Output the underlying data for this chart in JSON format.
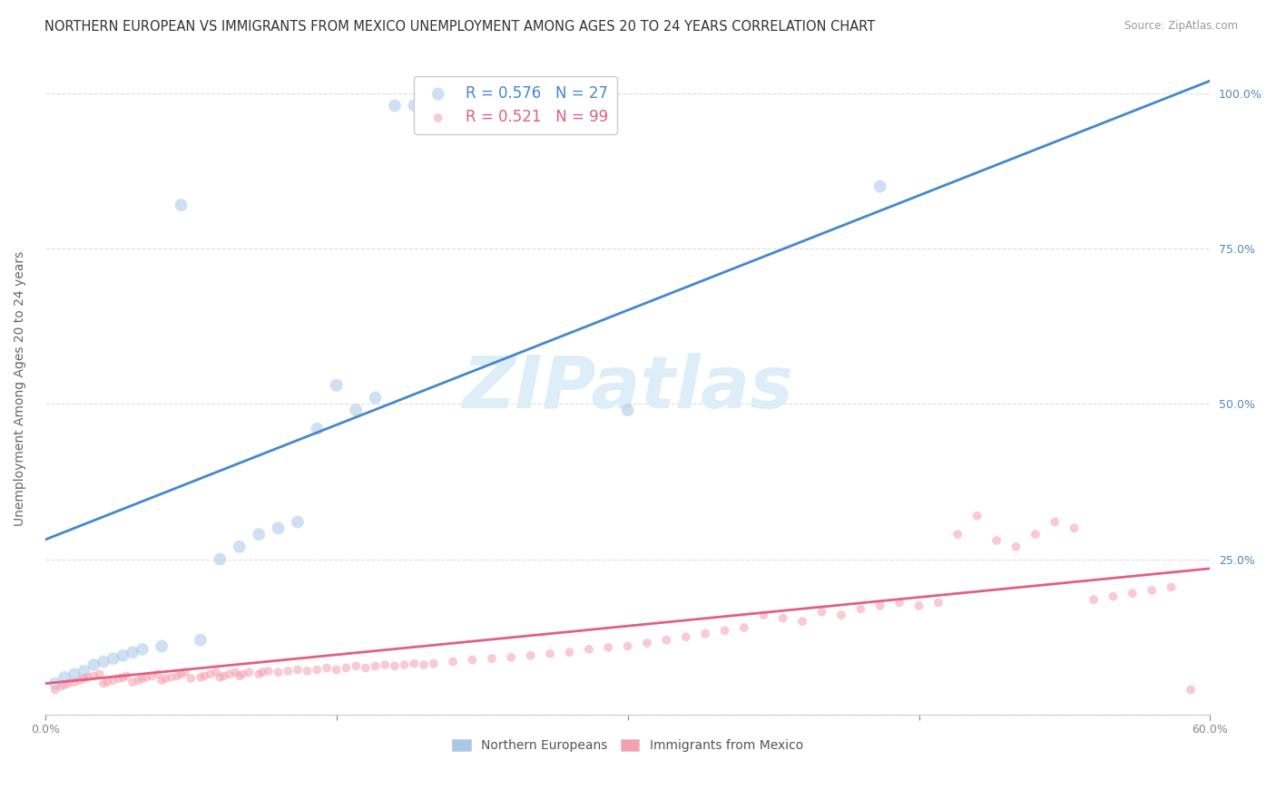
{
  "title": "NORTHERN EUROPEAN VS IMMIGRANTS FROM MEXICO UNEMPLOYMENT AMONG AGES 20 TO 24 YEARS CORRELATION CHART",
  "source": "Source: ZipAtlas.com",
  "ylabel": "Unemployment Among Ages 20 to 24 years",
  "xlim": [
    0.0,
    0.6
  ],
  "ylim": [
    0.0,
    1.05
  ],
  "xticks": [
    0.0,
    0.15,
    0.3,
    0.45,
    0.6
  ],
  "xticklabels": [
    "0.0%",
    "",
    "",
    "",
    "60.0%"
  ],
  "yticks": [
    0.0,
    0.25,
    0.5,
    0.75,
    1.0
  ],
  "yticklabels_right": [
    "",
    "25.0%",
    "50.0%",
    "75.0%",
    "100.0%"
  ],
  "watermark": "ZIPatlas",
  "blue_scatter_x": [
    0.005,
    0.01,
    0.015,
    0.02,
    0.025,
    0.03,
    0.035,
    0.04,
    0.045,
    0.05,
    0.06,
    0.07,
    0.08,
    0.09,
    0.1,
    0.11,
    0.12,
    0.13,
    0.14,
    0.15,
    0.16,
    0.17,
    0.18,
    0.19,
    0.2,
    0.3,
    0.43
  ],
  "blue_scatter_y": [
    0.05,
    0.06,
    0.065,
    0.07,
    0.08,
    0.085,
    0.09,
    0.095,
    0.1,
    0.105,
    0.11,
    0.82,
    0.12,
    0.25,
    0.27,
    0.29,
    0.3,
    0.31,
    0.46,
    0.53,
    0.49,
    0.51,
    0.98,
    0.98,
    0.98,
    0.49,
    0.85
  ],
  "pink_scatter_x": [
    0.005,
    0.008,
    0.01,
    0.012,
    0.015,
    0.018,
    0.02,
    0.022,
    0.025,
    0.028,
    0.03,
    0.032,
    0.035,
    0.038,
    0.04,
    0.042,
    0.045,
    0.048,
    0.05,
    0.052,
    0.055,
    0.058,
    0.06,
    0.062,
    0.065,
    0.068,
    0.07,
    0.072,
    0.075,
    0.08,
    0.082,
    0.085,
    0.088,
    0.09,
    0.092,
    0.095,
    0.098,
    0.1,
    0.102,
    0.105,
    0.11,
    0.112,
    0.115,
    0.12,
    0.125,
    0.13,
    0.135,
    0.14,
    0.145,
    0.15,
    0.155,
    0.16,
    0.165,
    0.17,
    0.175,
    0.18,
    0.185,
    0.19,
    0.195,
    0.2,
    0.21,
    0.22,
    0.23,
    0.24,
    0.25,
    0.26,
    0.27,
    0.28,
    0.29,
    0.3,
    0.31,
    0.32,
    0.33,
    0.34,
    0.35,
    0.36,
    0.37,
    0.38,
    0.39,
    0.4,
    0.41,
    0.42,
    0.43,
    0.44,
    0.45,
    0.46,
    0.47,
    0.48,
    0.49,
    0.5,
    0.51,
    0.52,
    0.53,
    0.54,
    0.55,
    0.56,
    0.57,
    0.58,
    0.59
  ],
  "pink_scatter_y": [
    0.04,
    0.045,
    0.048,
    0.05,
    0.052,
    0.055,
    0.058,
    0.06,
    0.062,
    0.065,
    0.05,
    0.052,
    0.055,
    0.058,
    0.06,
    0.062,
    0.052,
    0.055,
    0.058,
    0.06,
    0.062,
    0.065,
    0.055,
    0.058,
    0.06,
    0.062,
    0.065,
    0.068,
    0.058,
    0.06,
    0.062,
    0.065,
    0.068,
    0.06,
    0.062,
    0.065,
    0.068,
    0.062,
    0.065,
    0.068,
    0.065,
    0.068,
    0.07,
    0.068,
    0.07,
    0.072,
    0.07,
    0.072,
    0.075,
    0.072,
    0.075,
    0.078,
    0.075,
    0.078,
    0.08,
    0.078,
    0.08,
    0.082,
    0.08,
    0.082,
    0.085,
    0.088,
    0.09,
    0.092,
    0.095,
    0.098,
    0.1,
    0.105,
    0.108,
    0.11,
    0.115,
    0.12,
    0.125,
    0.13,
    0.135,
    0.14,
    0.16,
    0.155,
    0.15,
    0.165,
    0.16,
    0.17,
    0.175,
    0.18,
    0.175,
    0.18,
    0.29,
    0.32,
    0.28,
    0.27,
    0.29,
    0.31,
    0.3,
    0.185,
    0.19,
    0.195,
    0.2,
    0.205,
    0.04
  ],
  "blue_line_x": [
    -0.05,
    0.6
  ],
  "blue_line_y": [
    0.22,
    1.02
  ],
  "pink_line_x": [
    0.0,
    0.6
  ],
  "pink_line_y": [
    0.05,
    0.235
  ],
  "scatter_size_blue": 100,
  "scatter_size_pink": 50,
  "scatter_alpha_blue": 0.55,
  "scatter_alpha_pink": 0.55,
  "blue_color": "#a8c8e8",
  "pink_color": "#f5a0b0",
  "blue_line_color": "#4488cc",
  "pink_line_color": "#e06080",
  "grid_color": "#dddddd",
  "background_color": "#ffffff",
  "title_fontsize": 10.5,
  "axis_label_fontsize": 10,
  "tick_fontsize": 9,
  "watermark_fontsize": 58,
  "watermark_color": "#ddeef8",
  "source_color": "#999999",
  "tick_color_right": "#5588bb",
  "tick_color_x": "#888888"
}
